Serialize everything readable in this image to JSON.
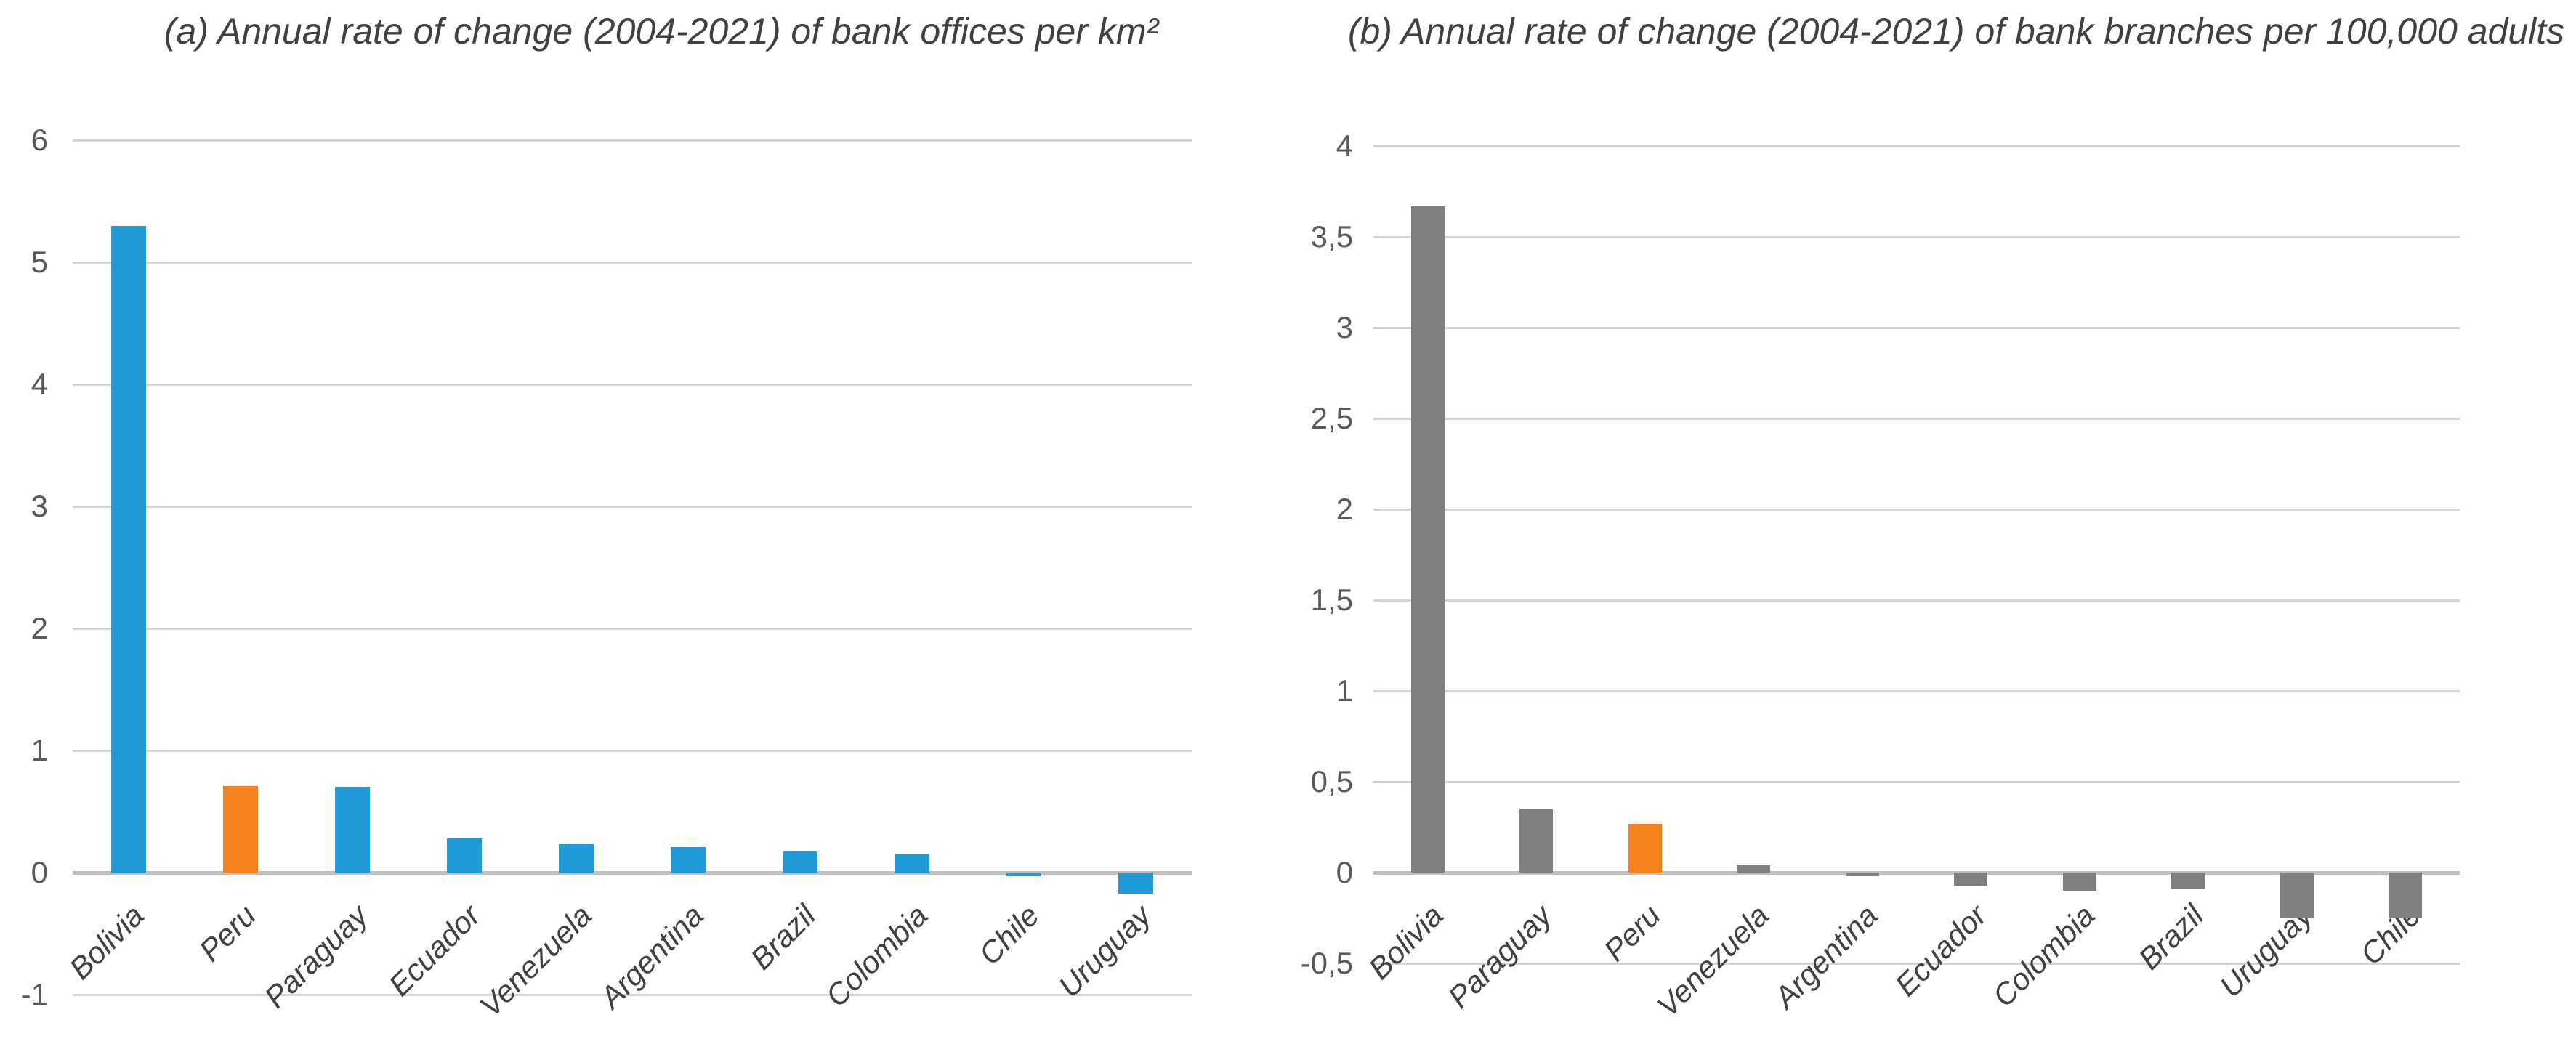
{
  "page": {
    "background": "#FFFFFF"
  },
  "chart_data": [
    {
      "id": "a",
      "type": "bar",
      "title": "(a) Annual rate of change (2004-2021) of bank offices per km²",
      "categories": [
        "Bolivia",
        "Peru",
        "Paraguay",
        "Ecuador",
        "Venezuela",
        "Argentina",
        "Brazil",
        "Colombia",
        "Chile",
        "Uruguay"
      ],
      "values": [
        5.3,
        0.71,
        0.7,
        0.28,
        0.23,
        0.21,
        0.17,
        0.15,
        -0.03,
        -0.17
      ],
      "bar_colors": [
        "#1F9AD6",
        "#F5821F",
        "#1F9AD6",
        "#1F9AD6",
        "#1F9AD6",
        "#1F9AD6",
        "#1F9AD6",
        "#1F9AD6",
        "#1F9AD6",
        "#1F9AD6"
      ],
      "ylim": [
        -1,
        6
      ],
      "ytick_values": [
        6,
        5,
        4,
        3,
        2,
        1,
        0,
        -1
      ],
      "ytick_labels": [
        "6",
        "5",
        "4",
        "3",
        "2",
        "1",
        "0",
        "-1"
      ],
      "grid": true,
      "legend": "none",
      "colors": {
        "grid": "#D5D5D5",
        "zero_axis": "#BFBFBF",
        "tick_text": "#595959",
        "category_text": "#404040",
        "title_text": "#404040"
      }
    },
    {
      "id": "b",
      "type": "bar",
      "title": "(b) Annual rate of change (2004-2021) of bank branches per 100,000 adults",
      "categories": [
        "Bolivia",
        "Paraguay",
        "Peru",
        "Venezuela",
        "Argentina",
        "Ecuador",
        "Colombia",
        "Brazil",
        "Uruguay",
        "Chile"
      ],
      "values": [
        3.67,
        0.35,
        0.27,
        0.04,
        -0.02,
        -0.07,
        -0.1,
        -0.09,
        -0.25,
        -0.25
      ],
      "bar_colors": [
        "#7F7F7F",
        "#7F7F7F",
        "#F5821F",
        "#7F7F7F",
        "#7F7F7F",
        "#7F7F7F",
        "#7F7F7F",
        "#7F7F7F",
        "#7F7F7F",
        "#7F7F7F"
      ],
      "ylim": [
        -0.5,
        4
      ],
      "ytick_values": [
        4,
        3.5,
        3,
        2.5,
        2,
        1.5,
        1,
        0.5,
        0,
        -0.5
      ],
      "ytick_labels": [
        "4",
        "3,5",
        "3",
        "2,5",
        "2",
        "1,5",
        "1",
        "0,5",
        "0",
        "-0,5"
      ],
      "grid": true,
      "legend": "none",
      "colors": {
        "grid": "#D5D5D5",
        "zero_axis": "#BFBFBF",
        "tick_text": "#595959",
        "category_text": "#404040",
        "title_text": "#404040"
      }
    }
  ]
}
